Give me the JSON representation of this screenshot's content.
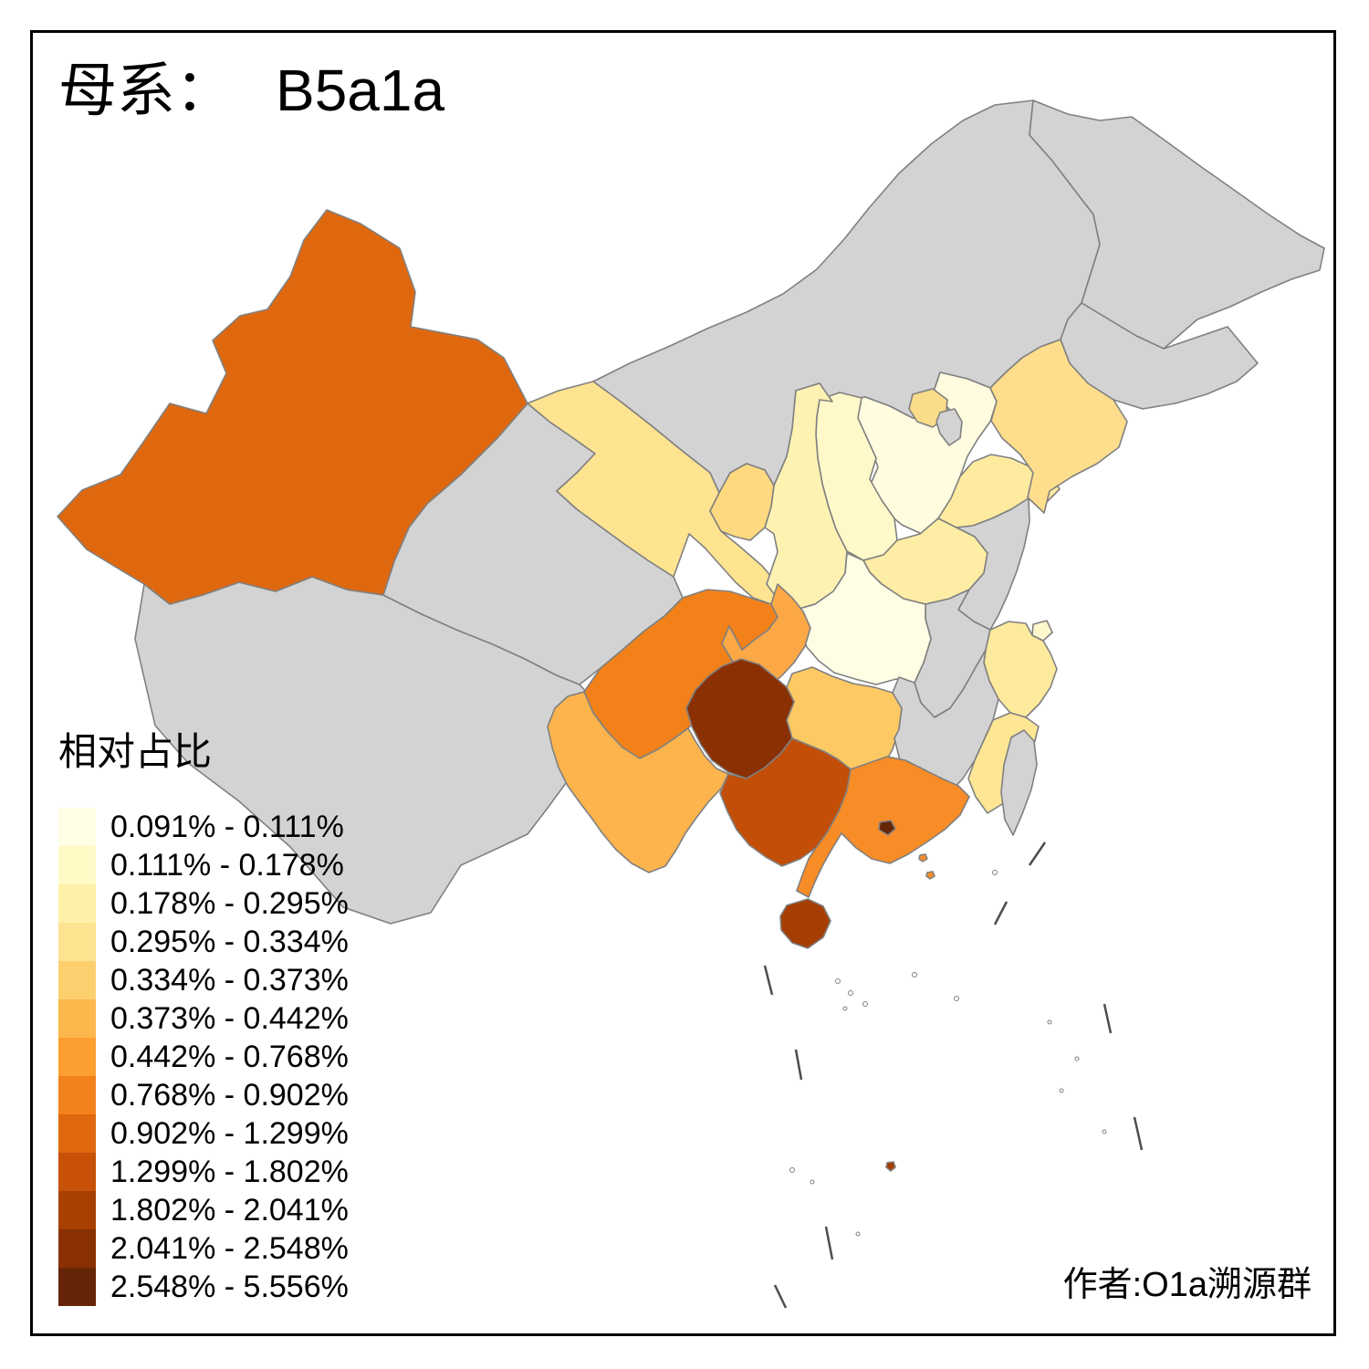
{
  "title": {
    "prefix": "母系：",
    "value": "B5a1a"
  },
  "legend": {
    "title": "相对占比",
    "items": [
      {
        "range": "0.091% - 0.111%",
        "color": "#FFFFE5"
      },
      {
        "range": "0.111% - 0.178%",
        "color": "#FFF9C6"
      },
      {
        "range": "0.178% - 0.295%",
        "color": "#FEF0A9"
      },
      {
        "range": "0.295% - 0.334%",
        "color": "#FEE391"
      },
      {
        "range": "0.334% - 0.373%",
        "color": "#FDD06F"
      },
      {
        "range": "0.373% - 0.442%",
        "color": "#FDB84D"
      },
      {
        "range": "0.442% - 0.768%",
        "color": "#FD9F30"
      },
      {
        "range": "0.768% - 0.902%",
        "color": "#F2821C"
      },
      {
        "range": "0.902% - 1.299%",
        "color": "#DF680F"
      },
      {
        "range": "1.299% - 1.802%",
        "color": "#C75106"
      },
      {
        "range": "1.802% - 2.041%",
        "color": "#A84003"
      },
      {
        "range": "2.041% - 2.548%",
        "color": "#8A3104"
      },
      {
        "range": "2.548% - 5.556%",
        "color": "#662506"
      }
    ]
  },
  "attribution": "作者:O1a溯源群",
  "map": {
    "no_data_color": "#D3D3D3",
    "border_color": "#808080",
    "regions": {
      "xinjiang": {
        "color": "#DF680F",
        "class": "0.902% - 1.299%"
      },
      "tibet": {
        "color": "#D3D3D3",
        "class": "no-data"
      },
      "qinghai": {
        "color": "#D3D3D3",
        "class": "no-data"
      },
      "inner-mongolia": {
        "color": "#D3D3D3",
        "class": "no-data"
      },
      "heilongjiang": {
        "color": "#D3D3D3",
        "class": "no-data"
      },
      "jilin": {
        "color": "#D3D3D3",
        "class": "no-data"
      },
      "liaoning": {
        "color": "#FEDE8C",
        "class": "0.295% - 0.334%"
      },
      "beijing": {
        "color": "#FBDC8A",
        "class": "0.295% - 0.334%"
      },
      "tianjin": {
        "color": "#D3D3D3",
        "class": "no-data"
      },
      "hebei": {
        "color": "#FFFCE0",
        "class": "0.091% - 0.111%"
      },
      "shanxi": {
        "color": "#FFF9C9",
        "class": "0.111% - 0.178%"
      },
      "shaanxi": {
        "color": "#FEF2B3",
        "class": "0.178% - 0.295%"
      },
      "gansu": {
        "color": "#FEE391",
        "class": "0.295% - 0.334%"
      },
      "ningxia": {
        "color": "#FED97F",
        "class": "0.334% - 0.373%"
      },
      "shandong": {
        "color": "#FEEBA0",
        "class": "0.178% - 0.295%"
      },
      "henan": {
        "color": "#FEEDA4",
        "class": "0.178% - 0.295%"
      },
      "jiangsu": {
        "color": "#D3D3D3",
        "class": "no-data"
      },
      "anhui": {
        "color": "#D3D3D3",
        "class": "no-data"
      },
      "shanghai": {
        "color": "#FFF8CC",
        "class": "0.111% - 0.178%"
      },
      "zhejiang": {
        "color": "#FEEA9D",
        "class": "0.178% - 0.295%"
      },
      "hubei": {
        "color": "#FFFEE5",
        "class": "0.091% - 0.111%"
      },
      "chongqing": {
        "color": "#FCA847",
        "class": "0.442% - 0.768%"
      },
      "sichuan": {
        "color": "#F28119",
        "class": "0.768% - 0.902%"
      },
      "guizhou": {
        "color": "#8A3003",
        "class": "2.041% - 2.548%"
      },
      "yunnan": {
        "color": "#FDB44C",
        "class": "0.373% - 0.442%"
      },
      "hunan": {
        "color": "#FDC963",
        "class": "0.334% - 0.373%"
      },
      "jiangxi": {
        "color": "#D3D3D3",
        "class": "no-data"
      },
      "fujian": {
        "color": "#FEE695",
        "class": "0.295% - 0.334%"
      },
      "guangxi": {
        "color": "#C24E07",
        "class": "1.299% - 1.802%"
      },
      "guangdong": {
        "color": "#F88C26",
        "class": "0.768% - 0.902%"
      },
      "hainan": {
        "color": "#A63E03",
        "class": "1.802% - 2.041%"
      },
      "hongkong": {
        "color": "#662506",
        "class": "2.548% - 5.556%"
      },
      "macau-islet": {
        "color": "#F88C26",
        "class": "0.768% - 0.902%"
      },
      "pratas-islet": {
        "color": "#F88C26",
        "class": "0.768% - 0.902%"
      },
      "paracel-islet": {
        "color": "#A63E03",
        "class": "1.802% - 2.041%"
      },
      "taiwan": {
        "color": "#D3D3D3",
        "class": "no-data"
      }
    }
  }
}
